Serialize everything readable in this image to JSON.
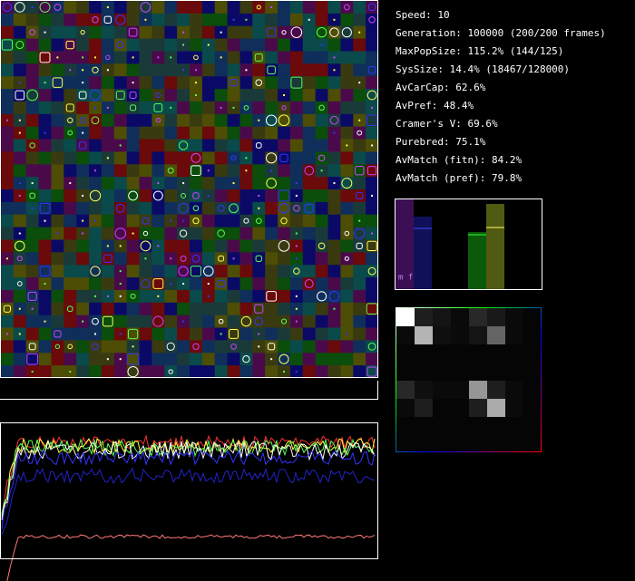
{
  "stats": [
    "Speed: 10",
    "Generation: 100000 (200/200 frames)",
    "MaxPopSize: 115.2% (144/125)",
    "SysSize: 14.4% (18467/128000)",
    "AvCarCap: 62.6%",
    "AvPref: 48.4%",
    "Cramer's V: 69.6%",
    "Purebred: 75.1%",
    "AvMatch (fitn): 84.2%",
    "AvMatch (pref): 79.8%"
  ],
  "histogram": {
    "label": "m f"
  }
}
